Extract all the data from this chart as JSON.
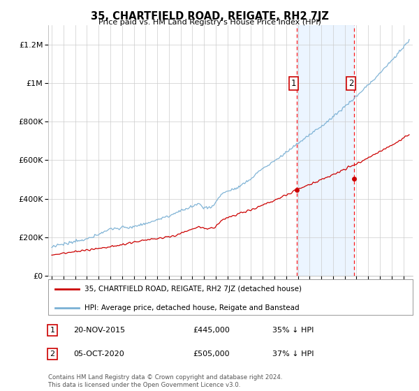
{
  "title": "35, CHARTFIELD ROAD, REIGATE, RH2 7JZ",
  "subtitle": "Price paid vs. HM Land Registry's House Price Index (HPI)",
  "ylim": [
    0,
    1300000
  ],
  "yticks": [
    0,
    200000,
    400000,
    600000,
    800000,
    1000000,
    1200000
  ],
  "ytick_labels": [
    "£0",
    "£200K",
    "£400K",
    "£600K",
    "£800K",
    "£1M",
    "£1.2M"
  ],
  "purchase1_year": 2015.9,
  "purchase2_year": 2020.8,
  "purchase1_price": 445000,
  "purchase2_price": 505000,
  "purchase1_date": "20-NOV-2015",
  "purchase2_date": "05-OCT-2020",
  "purchase1_pct": "35% ↓ HPI",
  "purchase2_pct": "37% ↓ HPI",
  "legend_line1": "35, CHARTFIELD ROAD, REIGATE, RH2 7JZ (detached house)",
  "legend_line2": "HPI: Average price, detached house, Reigate and Banstead",
  "footer": "Contains HM Land Registry data © Crown copyright and database right 2024.\nThis data is licensed under the Open Government Licence v3.0.",
  "background_shade": "#ddeeff",
  "price_line_color": "#cc0000",
  "hpi_line_color": "#7ab0d4",
  "grid_color": "#cccccc",
  "label_box_color": "#cc0000"
}
